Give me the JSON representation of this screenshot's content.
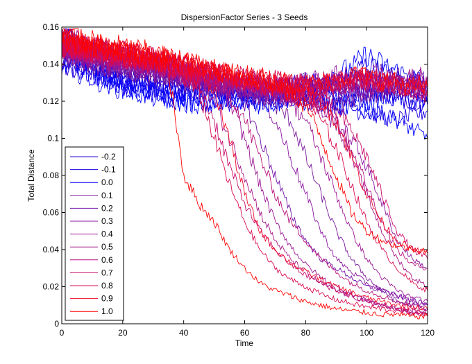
{
  "chart_data": {
    "type": "line",
    "title": "DispersionFactor Series - 3 Seeds",
    "xlabel": "Time",
    "ylabel": "Total Distance",
    "xlim": [
      0,
      120
    ],
    "ylim": [
      0,
      0.16
    ],
    "x_ticks": [
      "0",
      "20",
      "40",
      "60",
      "80",
      "100",
      "120"
    ],
    "y_ticks": [
      "0",
      "0.02",
      "0.04",
      "0.06",
      "0.08",
      "0.1",
      "0.12",
      "0.14",
      "0.16"
    ],
    "grid": false,
    "legend_position": "bottom-left",
    "runs_per_series": 3,
    "x_shared": [
      0,
      10,
      20,
      30,
      35,
      40,
      45,
      50,
      55,
      60,
      65,
      70,
      75,
      80,
      85,
      90,
      95,
      100,
      105,
      110,
      115,
      120
    ],
    "series": [
      {
        "name": "-0.2",
        "color": "#2e00d1",
        "runs": [
          [
            0.16,
            0.142,
            0.135,
            0.13,
            0.128,
            0.13,
            0.132,
            0.13,
            0.128,
            0.13,
            0.127,
            0.128,
            0.13,
            0.128,
            0.13,
            0.125,
            0.127,
            0.128,
            0.13,
            0.128,
            0.126,
            0.125
          ],
          [
            0.14,
            0.136,
            0.132,
            0.13,
            0.128,
            0.127,
            0.126,
            0.128,
            0.13,
            0.126,
            0.124,
            0.126,
            0.128,
            0.13,
            0.128,
            0.127,
            0.13,
            0.132,
            0.128,
            0.126,
            0.124,
            0.122
          ],
          [
            0.15,
            0.14,
            0.135,
            0.133,
            0.131,
            0.129,
            0.127,
            0.125,
            0.126,
            0.128,
            0.126,
            0.124,
            0.123,
            0.125,
            0.127,
            0.128,
            0.13,
            0.127,
            0.125,
            0.123,
            0.121,
            0.12
          ]
        ]
      },
      {
        "name": "-0.1",
        "color": "#1a00e6",
        "runs": [
          [
            0.15,
            0.138,
            0.13,
            0.126,
            0.125,
            0.127,
            0.128,
            0.126,
            0.124,
            0.125,
            0.127,
            0.126,
            0.124,
            0.125,
            0.127,
            0.13,
            0.135,
            0.14,
            0.136,
            0.132,
            0.13,
            0.128
          ],
          [
            0.145,
            0.136,
            0.128,
            0.124,
            0.122,
            0.124,
            0.126,
            0.124,
            0.122,
            0.12,
            0.122,
            0.124,
            0.123,
            0.121,
            0.12,
            0.118,
            0.116,
            0.114,
            0.112,
            0.11,
            0.112,
            0.115
          ],
          [
            0.14,
            0.134,
            0.13,
            0.128,
            0.126,
            0.124,
            0.122,
            0.12,
            0.119,
            0.121,
            0.123,
            0.125,
            0.124,
            0.122,
            0.12,
            0.118,
            0.121,
            0.123,
            0.125,
            0.122,
            0.12,
            0.118
          ]
        ]
      },
      {
        "name": "0.0",
        "color": "#0000ff",
        "runs": [
          [
            0.16,
            0.14,
            0.132,
            0.128,
            0.126,
            0.125,
            0.127,
            0.129,
            0.127,
            0.125,
            0.123,
            0.125,
            0.128,
            0.13,
            0.132,
            0.135,
            0.138,
            0.145,
            0.14,
            0.136,
            0.133,
            0.13
          ],
          [
            0.15,
            0.136,
            0.128,
            0.124,
            0.122,
            0.12,
            0.118,
            0.12,
            0.122,
            0.12,
            0.118,
            0.12,
            0.122,
            0.12,
            0.119,
            0.118,
            0.116,
            0.115,
            0.113,
            0.11,
            0.105,
            0.1
          ],
          [
            0.14,
            0.132,
            0.126,
            0.122,
            0.12,
            0.119,
            0.118,
            0.117,
            0.119,
            0.121,
            0.12,
            0.119,
            0.121,
            0.123,
            0.125,
            0.123,
            0.121,
            0.119,
            0.121,
            0.122,
            0.12,
            0.118
          ]
        ]
      },
      {
        "name": "0.1",
        "color": "#7a1a9c",
        "runs": [
          [
            0.155,
            0.145,
            0.14,
            0.137,
            0.135,
            0.132,
            0.131,
            0.13,
            0.128,
            0.126,
            0.122,
            0.118,
            0.11,
            0.09,
            0.07,
            0.05,
            0.035,
            0.025,
            0.018,
            0.012,
            0.01,
            0.008
          ],
          [
            0.15,
            0.142,
            0.138,
            0.135,
            0.134,
            0.133,
            0.131,
            0.129,
            0.127,
            0.125,
            0.124,
            0.126,
            0.125,
            0.123,
            0.121,
            0.12,
            0.122,
            0.124,
            0.125,
            0.127,
            0.128,
            0.13
          ],
          [
            0.145,
            0.14,
            0.137,
            0.134,
            0.132,
            0.13,
            0.129,
            0.128,
            0.126,
            0.125,
            0.123,
            0.124,
            0.125,
            0.126,
            0.127,
            0.128,
            0.13,
            0.132,
            0.13,
            0.128,
            0.126,
            0.124
          ]
        ]
      },
      {
        "name": "0.2",
        "color": "#7010a8",
        "runs": [
          [
            0.15,
            0.144,
            0.14,
            0.138,
            0.136,
            0.134,
            0.132,
            0.13,
            0.128,
            0.12,
            0.1,
            0.08,
            0.06,
            0.045,
            0.035,
            0.03,
            0.025,
            0.02,
            0.018,
            0.015,
            0.013,
            0.01
          ],
          [
            0.155,
            0.146,
            0.142,
            0.138,
            0.136,
            0.135,
            0.133,
            0.131,
            0.13,
            0.128,
            0.127,
            0.125,
            0.124,
            0.126,
            0.128,
            0.13,
            0.131,
            0.133,
            0.135,
            0.133,
            0.131,
            0.13
          ],
          [
            0.145,
            0.14,
            0.137,
            0.135,
            0.133,
            0.131,
            0.13,
            0.128,
            0.127,
            0.126,
            0.125,
            0.127,
            0.128,
            0.13,
            0.129,
            0.127,
            0.126,
            0.125,
            0.127,
            0.129,
            0.131,
            0.133
          ]
        ]
      },
      {
        "name": "0.3",
        "color": "#8a14a0",
        "runs": [
          [
            0.15,
            0.145,
            0.142,
            0.14,
            0.138,
            0.136,
            0.134,
            0.132,
            0.13,
            0.128,
            0.125,
            0.11,
            0.09,
            0.07,
            0.05,
            0.035,
            0.028,
            0.022,
            0.018,
            0.015,
            0.012,
            0.01
          ],
          [
            0.155,
            0.147,
            0.143,
            0.14,
            0.138,
            0.136,
            0.134,
            0.132,
            0.13,
            0.128,
            0.126,
            0.124,
            0.122,
            0.12,
            0.115,
            0.108,
            0.1,
            0.085,
            0.065,
            0.045,
            0.035,
            0.03
          ],
          [
            0.145,
            0.141,
            0.138,
            0.136,
            0.134,
            0.133,
            0.131,
            0.13,
            0.129,
            0.128,
            0.127,
            0.128,
            0.129,
            0.13,
            0.132,
            0.134,
            0.133,
            0.131,
            0.13,
            0.128,
            0.127,
            0.126
          ]
        ]
      },
      {
        "name": "0.4",
        "color": "#9a1494",
        "runs": [
          [
            0.15,
            0.146,
            0.143,
            0.14,
            0.138,
            0.136,
            0.133,
            0.13,
            0.12,
            0.1,
            0.075,
            0.055,
            0.042,
            0.032,
            0.025,
            0.02,
            0.016,
            0.013,
            0.01,
            0.008,
            0.006,
            0.005
          ],
          [
            0.155,
            0.148,
            0.144,
            0.141,
            0.139,
            0.137,
            0.135,
            0.133,
            0.131,
            0.129,
            0.128,
            0.126,
            0.12,
            0.11,
            0.09,
            0.07,
            0.05,
            0.035,
            0.025,
            0.018,
            0.014,
            0.012
          ],
          [
            0.148,
            0.143,
            0.14,
            0.138,
            0.136,
            0.134,
            0.132,
            0.131,
            0.13,
            0.129,
            0.128,
            0.127,
            0.128,
            0.13,
            0.131,
            0.13,
            0.128,
            0.127,
            0.128,
            0.13,
            0.132,
            0.134
          ]
        ]
      },
      {
        "name": "0.5",
        "color": "#a81488",
        "runs": [
          [
            0.15,
            0.146,
            0.143,
            0.14,
            0.137,
            0.134,
            0.13,
            0.12,
            0.1,
            0.08,
            0.06,
            0.045,
            0.035,
            0.028,
            0.022,
            0.018,
            0.015,
            0.012,
            0.01,
            0.008,
            0.007,
            0.006
          ],
          [
            0.152,
            0.148,
            0.145,
            0.142,
            0.14,
            0.138,
            0.136,
            0.134,
            0.132,
            0.13,
            0.128,
            0.126,
            0.124,
            0.122,
            0.12,
            0.11,
            0.09,
            0.07,
            0.05,
            0.035,
            0.025,
            0.02
          ],
          [
            0.148,
            0.144,
            0.141,
            0.139,
            0.137,
            0.135,
            0.134,
            0.132,
            0.131,
            0.13,
            0.129,
            0.128,
            0.127,
            0.129,
            0.13,
            0.131,
            0.13,
            0.129,
            0.13,
            0.132,
            0.13,
            0.128
          ]
        ]
      },
      {
        "name": "0.6",
        "color": "#b8107a",
        "runs": [
          [
            0.15,
            0.147,
            0.144,
            0.141,
            0.139,
            0.137,
            0.134,
            0.13,
            0.124,
            0.11,
            0.09,
            0.07,
            0.055,
            0.045,
            0.035,
            0.028,
            0.022,
            0.018,
            0.015,
            0.012,
            0.01,
            0.008
          ],
          [
            0.153,
            0.149,
            0.146,
            0.143,
            0.141,
            0.139,
            0.137,
            0.135,
            0.133,
            0.131,
            0.129,
            0.127,
            0.125,
            0.122,
            0.118,
            0.11,
            0.095,
            0.075,
            0.055,
            0.04,
            0.032,
            0.03
          ],
          [
            0.148,
            0.145,
            0.142,
            0.14,
            0.138,
            0.136,
            0.135,
            0.133,
            0.132,
            0.131,
            0.13,
            0.129,
            0.128,
            0.127,
            0.128,
            0.13,
            0.131,
            0.132,
            0.13,
            0.128,
            0.127,
            0.125
          ]
        ]
      },
      {
        "name": "0.7",
        "color": "#c80c6a",
        "runs": [
          [
            0.15,
            0.147,
            0.144,
            0.141,
            0.138,
            0.135,
            0.128,
            0.11,
            0.085,
            0.065,
            0.05,
            0.04,
            0.032,
            0.026,
            0.022,
            0.018,
            0.015,
            0.012,
            0.01,
            0.008,
            0.006,
            0.005
          ],
          [
            0.152,
            0.149,
            0.146,
            0.143,
            0.141,
            0.139,
            0.137,
            0.135,
            0.133,
            0.131,
            0.129,
            0.127,
            0.125,
            0.123,
            0.12,
            0.115,
            0.105,
            0.09,
            0.07,
            0.05,
            0.04,
            0.035
          ],
          [
            0.15,
            0.146,
            0.143,
            0.141,
            0.139,
            0.137,
            0.136,
            0.134,
            0.133,
            0.132,
            0.131,
            0.13,
            0.129,
            0.128,
            0.127,
            0.128,
            0.13,
            0.132,
            0.13,
            0.128,
            0.126,
            0.124
          ]
        ]
      },
      {
        "name": "0.8",
        "color": "#d80a4c",
        "runs": [
          [
            0.15,
            0.147,
            0.143,
            0.14,
            0.137,
            0.133,
            0.125,
            0.1,
            0.075,
            0.055,
            0.04,
            0.03,
            0.024,
            0.02,
            0.016,
            0.013,
            0.011,
            0.009,
            0.008,
            0.007,
            0.006,
            0.005
          ],
          [
            0.152,
            0.149,
            0.146,
            0.143,
            0.141,
            0.139,
            0.137,
            0.135,
            0.133,
            0.131,
            0.129,
            0.127,
            0.125,
            0.12,
            0.11,
            0.095,
            0.075,
            0.055,
            0.04,
            0.03,
            0.022,
            0.018
          ],
          [
            0.15,
            0.147,
            0.144,
            0.142,
            0.14,
            0.138,
            0.137,
            0.135,
            0.134,
            0.133,
            0.132,
            0.131,
            0.13,
            0.129,
            0.128,
            0.13,
            0.131,
            0.132,
            0.133,
            0.131,
            0.13,
            0.128
          ]
        ]
      },
      {
        "name": "0.9",
        "color": "#f0082a",
        "runs": [
          [
            0.152,
            0.148,
            0.145,
            0.142,
            0.14,
            0.138,
            0.134,
            0.126,
            0.1,
            0.07,
            0.05,
            0.04,
            0.033,
            0.028,
            0.024,
            0.02,
            0.017,
            0.014,
            0.012,
            0.01,
            0.009,
            0.008
          ],
          [
            0.155,
            0.15,
            0.147,
            0.144,
            0.142,
            0.14,
            0.138,
            0.136,
            0.134,
            0.132,
            0.13,
            0.128,
            0.126,
            0.124,
            0.12,
            0.11,
            0.09,
            0.07,
            0.055,
            0.045,
            0.04,
            0.038
          ],
          [
            0.15,
            0.148,
            0.145,
            0.143,
            0.141,
            0.139,
            0.137,
            0.136,
            0.134,
            0.133,
            0.132,
            0.13,
            0.129,
            0.128,
            0.129,
            0.131,
            0.133,
            0.132,
            0.13,
            0.128,
            0.127,
            0.126
          ]
        ]
      },
      {
        "name": "1.0",
        "color": "#ff0000",
        "runs": [
          [
            0.16,
            0.15,
            0.146,
            0.142,
            0.138,
            0.08,
            0.065,
            0.055,
            0.04,
            0.03,
            0.022,
            0.018,
            0.015,
            0.012,
            0.01,
            0.008,
            0.007,
            0.006,
            0.005,
            0.005,
            0.004,
            0.004
          ],
          [
            0.155,
            0.152,
            0.149,
            0.146,
            0.143,
            0.141,
            0.139,
            0.137,
            0.135,
            0.133,
            0.131,
            0.128,
            0.124,
            0.118,
            0.1,
            0.08,
            0.06,
            0.05,
            0.045,
            0.042,
            0.04,
            0.04
          ],
          [
            0.152,
            0.15,
            0.147,
            0.145,
            0.143,
            0.141,
            0.139,
            0.137,
            0.135,
            0.134,
            0.133,
            0.131,
            0.13,
            0.129,
            0.13,
            0.132,
            0.134,
            0.133,
            0.131,
            0.13,
            0.128,
            0.127
          ]
        ]
      }
    ]
  }
}
